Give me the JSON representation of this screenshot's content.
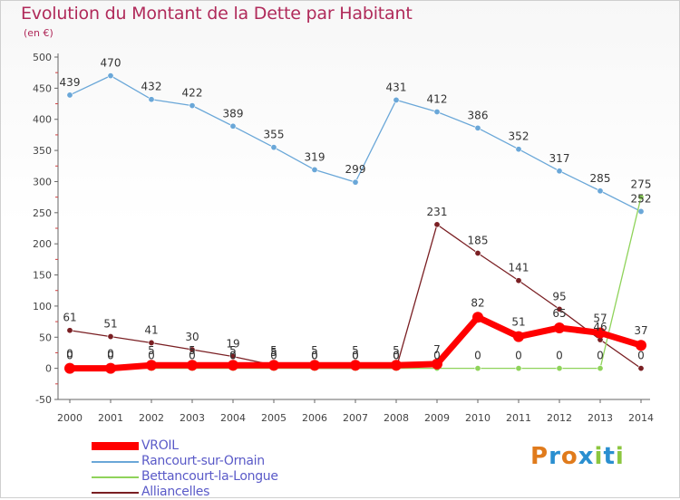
{
  "header": {
    "title": "Evolution du Montant de la Dette par Habitant",
    "subtitle": "(en €)"
  },
  "logo": {
    "text": "Proxiti"
  },
  "chart_data": {
    "type": "line",
    "title": "Evolution du Montant de la Dette par Habitant",
    "subtitle": "(en €)",
    "xlabel": "",
    "ylabel": "",
    "x": [
      "2000",
      "2001",
      "2002",
      "2003",
      "2004",
      "2005",
      "2006",
      "2007",
      "2008",
      "2009",
      "2010",
      "2011",
      "2012",
      "2013",
      "2014"
    ],
    "ylim": [
      -50,
      500
    ],
    "yticks": [
      -50,
      0,
      50,
      100,
      150,
      200,
      250,
      300,
      350,
      400,
      450,
      500
    ],
    "grid": false,
    "legend_position": "bottom-left",
    "series": [
      {
        "name": "VROIL",
        "color": "#ff0000",
        "values": [
          0,
          0,
          5,
          5,
          5,
          5,
          5,
          5,
          5,
          7,
          82,
          51,
          65,
          57,
          37
        ],
        "labels": [
          "0",
          "0",
          "5",
          "5",
          "5",
          "5",
          "5",
          "5",
          "5",
          "7",
          "82",
          "51",
          "65",
          "57",
          "37"
        ]
      },
      {
        "name": "Rancourt-sur-Ornain",
        "color": "#6aa7d8",
        "values": [
          439,
          470,
          432,
          422,
          389,
          355,
          319,
          299,
          431,
          412,
          386,
          352,
          317,
          285,
          252
        ],
        "labels": [
          "439",
          "470",
          "432",
          "422",
          "389",
          "355",
          "319",
          "299",
          "431",
          "412",
          "386",
          "352",
          "317",
          "285",
          "252"
        ]
      },
      {
        "name": "Bettancourt-la-Longue",
        "color": "#8fd35a",
        "values": [
          0,
          0,
          0,
          0,
          0,
          0,
          0,
          0,
          0,
          0,
          0,
          0,
          0,
          0,
          275
        ],
        "labels": [
          "0",
          "0",
          "0",
          "0",
          "0",
          "0",
          "0",
          "0",
          "0",
          "0",
          "0",
          "0",
          "0",
          "0",
          "275"
        ]
      },
      {
        "name": "Alliancelles",
        "color": "#7a1f23",
        "values": [
          61,
          51,
          41,
          30,
          19,
          5,
          0,
          0,
          0,
          231,
          185,
          141,
          95,
          46,
          0
        ],
        "labels": [
          "61",
          "51",
          "41",
          "30",
          "19",
          "5",
          "0",
          "0",
          "0",
          "231",
          "185",
          "141",
          "95",
          "46",
          "0"
        ]
      }
    ]
  }
}
